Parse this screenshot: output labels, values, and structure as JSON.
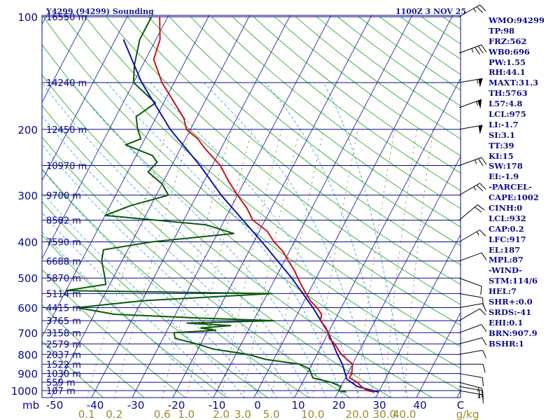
{
  "header": {
    "station": "Y4299 (94299) Sounding",
    "time": "1100Z  3 NOV 25"
  },
  "indices": [
    "WMO:94299",
    "TP:98",
    "FRZ:562",
    "WB0:696",
    "PW:1.55",
    "RH:44.1",
    "MAXT:31.3",
    "TH:5763",
    "L57:4.8",
    "LCL:975",
    "LI:-1.7",
    "SI:3.1",
    "TT:39",
    "KI:15",
    "SW:178",
    "EI:-1.9",
    "-PARCEL-",
    "CAPE:1002",
    "CINH:0",
    "LCL:932",
    "CAP:0.2",
    "LFC:917",
    "EL:187",
    "MPL:87",
    "-WIND-",
    "STM:114/6",
    "HEL:7",
    "SHR+:0.0",
    "SRDS:-41",
    "EHI:0.1",
    "BRN:907.9",
    "BSHR:1"
  ],
  "chart_data": {
    "type": "skew-t",
    "y_axis": {
      "unit": "mb",
      "ticks": [
        100,
        200,
        300,
        400,
        500,
        600,
        700,
        800,
        900,
        1000
      ],
      "range": [
        1050,
        100
      ],
      "log": true
    },
    "x_axis": {
      "unit": "C",
      "ticks": [
        -50,
        -40,
        -30,
        -20,
        -10,
        0,
        10,
        20,
        30,
        40
      ],
      "label_last": "C"
    },
    "mixing_ratio": {
      "unit": "g/kg",
      "ticks": [
        "0.1",
        "0.2",
        "0.6",
        "1.0",
        "2.0",
        "3.0",
        "5.0",
        "10.0",
        "20.0",
        "30.0",
        "40.0"
      ]
    },
    "height_labels": [
      {
        "p": 100,
        "label": "16550 m"
      },
      {
        "p": 150,
        "label": "14240 m"
      },
      {
        "p": 200,
        "label": "12450 m"
      },
      {
        "p": 250,
        "label": "10970 m"
      },
      {
        "p": 300,
        "label": "9700 m"
      },
      {
        "p": 350,
        "label": "8582 m"
      },
      {
        "p": 400,
        "label": "7590 m"
      },
      {
        "p": 450,
        "label": "6688 m"
      },
      {
        "p": 500,
        "label": "5870 m"
      },
      {
        "p": 550,
        "label": "5114 m"
      },
      {
        "p": 600,
        "label": "4415 m"
      },
      {
        "p": 650,
        "label": "3765 m"
      },
      {
        "p": 700,
        "label": "3158 m"
      },
      {
        "p": 750,
        "label": "2579 m"
      },
      {
        "p": 800,
        "label": "2037 m"
      },
      {
        "p": 850,
        "label": "1522 m"
      },
      {
        "p": 900,
        "label": "1030 m"
      },
      {
        "p": 950,
        "label": "559 m"
      },
      {
        "p": 1000,
        "label": "107 m"
      }
    ],
    "temperature": [
      [
        1009,
        29
      ],
      [
        1000,
        27
      ],
      [
        975,
        25
      ],
      [
        950,
        23.5
      ],
      [
        925,
        21
      ],
      [
        900,
        21
      ],
      [
        875,
        20.5
      ],
      [
        850,
        20
      ],
      [
        825,
        18
      ],
      [
        800,
        16
      ],
      [
        775,
        14.5
      ],
      [
        750,
        13
      ],
      [
        725,
        11
      ],
      [
        700,
        10
      ],
      [
        675,
        8.5
      ],
      [
        650,
        6.5
      ],
      [
        625,
        6
      ],
      [
        600,
        4
      ],
      [
        575,
        1.5
      ],
      [
        550,
        -0.5
      ],
      [
        525,
        -2.5
      ],
      [
        500,
        -4.5
      ],
      [
        475,
        -6.5
      ],
      [
        450,
        -9
      ],
      [
        425,
        -11.5
      ],
      [
        400,
        -15
      ],
      [
        375,
        -18
      ],
      [
        350,
        -23
      ],
      [
        325,
        -26
      ],
      [
        300,
        -30
      ],
      [
        275,
        -34
      ],
      [
        250,
        -38
      ],
      [
        225,
        -44
      ],
      [
        212,
        -47
      ],
      [
        200,
        -51
      ],
      [
        187,
        -53
      ],
      [
        175,
        -56
      ],
      [
        150,
        -63
      ],
      [
        130,
        -68
      ],
      [
        115,
        -69
      ],
      [
        100,
        -72
      ]
    ],
    "dewpoint": [
      [
        1009,
        22
      ],
      [
        1000,
        20
      ],
      [
        975,
        20
      ],
      [
        950,
        17
      ],
      [
        925,
        12
      ],
      [
        900,
        11
      ],
      [
        875,
        10
      ],
      [
        850,
        7
      ],
      [
        825,
        -2
      ],
      [
        800,
        -7
      ],
      [
        775,
        -16
      ],
      [
        750,
        -21
      ],
      [
        725,
        -27
      ],
      [
        700,
        -28
      ],
      [
        690,
        -18
      ],
      [
        680,
        -22
      ],
      [
        670,
        -15
      ],
      [
        660,
        -26
      ],
      [
        650,
        -5
      ],
      [
        640,
        -23
      ],
      [
        625,
        -45
      ],
      [
        600,
        -55
      ],
      [
        575,
        -40
      ],
      [
        550,
        -9
      ],
      [
        540,
        -60
      ],
      [
        520,
        -51
      ],
      [
        500,
        -52
      ],
      [
        450,
        -55
      ],
      [
        420,
        -56
      ],
      [
        400,
        -45
      ],
      [
        380,
        -26
      ],
      [
        360,
        -34
      ],
      [
        340,
        -60
      ],
      [
        320,
        -55
      ],
      [
        300,
        -47
      ],
      [
        280,
        -50
      ],
      [
        260,
        -55
      ],
      [
        245,
        -54
      ],
      [
        235,
        -56
      ],
      [
        220,
        -64
      ],
      [
        212,
        -61
      ],
      [
        200,
        -63
      ],
      [
        185,
        -65
      ],
      [
        170,
        -62
      ],
      [
        150,
        -70
      ],
      [
        135,
        -72
      ],
      [
        115,
        -74
      ],
      [
        100,
        -74
      ]
    ],
    "parcel": [
      [
        1009,
        30
      ],
      [
        975,
        24
      ],
      [
        932,
        20.5
      ],
      [
        917,
        20
      ],
      [
        850,
        17.5
      ],
      [
        800,
        15
      ],
      [
        700,
        10
      ],
      [
        600,
        3
      ],
      [
        500,
        -6
      ],
      [
        400,
        -18
      ],
      [
        300,
        -34
      ],
      [
        250,
        -43
      ],
      [
        200,
        -55
      ],
      [
        187,
        -58
      ],
      [
        150,
        -68
      ],
      [
        115,
        -78
      ]
    ],
    "wind_barbs": [
      {
        "p": 1000,
        "dir": 100,
        "spd": 15
      },
      {
        "p": 975,
        "dir": 100,
        "spd": 20
      },
      {
        "p": 950,
        "dir": 105,
        "spd": 15
      },
      {
        "p": 900,
        "dir": 100,
        "spd": 10
      },
      {
        "p": 850,
        "dir": 90,
        "spd": 10
      },
      {
        "p": 800,
        "dir": 80,
        "spd": 10
      },
      {
        "p": 750,
        "dir": 75,
        "spd": 10
      },
      {
        "p": 700,
        "dir": 70,
        "spd": 10
      },
      {
        "p": 650,
        "dir": 60,
        "spd": 10
      },
      {
        "p": 600,
        "dir": 80,
        "spd": 10
      },
      {
        "p": 550,
        "dir": 100,
        "spd": 10
      },
      {
        "p": 500,
        "dir": 110,
        "spd": 10
      },
      {
        "p": 450,
        "dir": 70,
        "spd": 10
      },
      {
        "p": 400,
        "dir": 60,
        "spd": 15
      },
      {
        "p": 350,
        "dir": 50,
        "spd": 20
      },
      {
        "p": 300,
        "dir": 60,
        "spd": 25
      },
      {
        "p": 250,
        "dir": 70,
        "spd": 25
      },
      {
        "p": 200,
        "dir": 80,
        "spd": 50
      },
      {
        "p": 175,
        "dir": 70,
        "spd": 55
      },
      {
        "p": 150,
        "dir": 80,
        "spd": 55
      },
      {
        "p": 125,
        "dir": 70,
        "spd": 35
      },
      {
        "p": 100,
        "dir": 60,
        "spd": 25
      }
    ],
    "colors": {
      "isobar": "#0a0a8a",
      "isotherm": "#2a2aa0",
      "dry_adiabat": "#16a01a",
      "moist_adiabat": "#2d9ad0",
      "mixing_ratio": "#8a7a3a",
      "temperature": "#c81414",
      "dewpoint": "#0a5a0a",
      "parcel": "#1010b0",
      "label": "#0a0a8a",
      "mix_label": "#a08a2a",
      "plot_bg": "#ffffff"
    }
  }
}
